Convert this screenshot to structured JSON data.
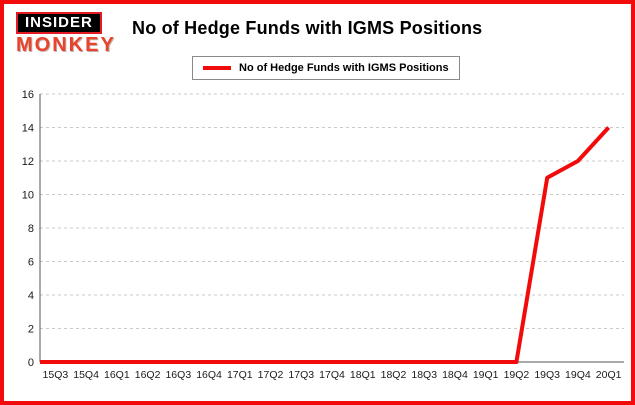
{
  "page": {
    "border_color": "#f10b0b",
    "background": "#ffffff"
  },
  "logo": {
    "line1": "INSIDER",
    "line2": "MONKEY",
    "box_bg": "#000000",
    "box_text_color": "#ffffff",
    "box_border_color": "#e31b23",
    "monkey_color": "#e8432c"
  },
  "header": {
    "title": "No of Hedge Funds with IGMS Positions"
  },
  "legend": {
    "label": "No of Hedge Funds with IGMS Positions",
    "line_color": "#f10b0b"
  },
  "chart_data": {
    "type": "line",
    "title": "No of Hedge Funds with IGMS Positions",
    "categories": [
      "15Q3",
      "15Q4",
      "16Q1",
      "16Q2",
      "16Q3",
      "16Q4",
      "17Q1",
      "17Q2",
      "17Q3",
      "17Q4",
      "18Q1",
      "18Q2",
      "18Q3",
      "18Q4",
      "19Q1",
      "19Q2",
      "19Q3",
      "19Q4",
      "20Q1"
    ],
    "series": [
      {
        "name": "No of Hedge Funds with IGMS Positions",
        "color": "#f10b0b",
        "values": [
          0,
          0,
          0,
          0,
          0,
          0,
          0,
          0,
          0,
          0,
          0,
          0,
          0,
          0,
          0,
          0,
          11,
          12,
          14
        ]
      }
    ],
    "xlabel": "",
    "ylabel": "",
    "ylim": [
      0,
      16
    ],
    "yticks": [
      0,
      2,
      4,
      6,
      8,
      10,
      12,
      14,
      16
    ],
    "grid": "horizontal-dashed",
    "gridline_color": "#c9c9c9",
    "axis_color": "#555555",
    "legend_position": "top-left"
  }
}
